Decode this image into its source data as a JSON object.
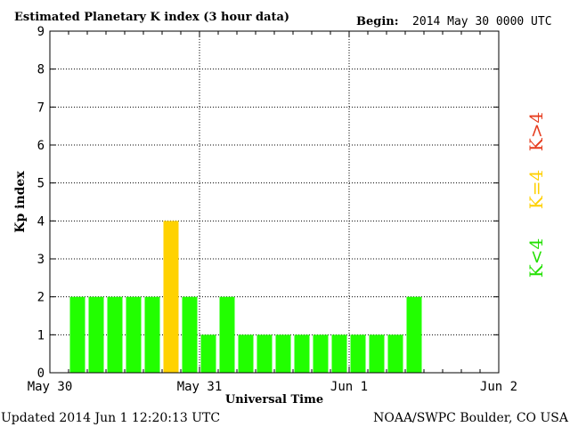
{
  "chart_data": {
    "type": "bar",
    "title": "Estimated Planetary K index (3 hour data)",
    "begin_label": "Begin:",
    "begin_value": "2014 May 30 0000 UTC",
    "xlabel": "Universal Time",
    "ylabel": "Kp index",
    "ylim": [
      0,
      9
    ],
    "yticks": [
      "0",
      "1",
      "2",
      "3",
      "4",
      "5",
      "6",
      "7",
      "8",
      "9"
    ],
    "xticks": [
      "May 30",
      "May 31",
      "Jun 1",
      "Jun 2"
    ],
    "xrange_days": 3,
    "bin_hours": 3,
    "values": [
      2,
      2,
      2,
      2,
      2,
      4,
      2,
      1,
      2,
      1,
      1,
      1,
      1,
      1,
      1,
      1,
      1,
      1,
      2
    ],
    "first_bin_index": 1,
    "grid": true,
    "legend": [
      {
        "label": "K<4",
        "color": "#22e000"
      },
      {
        "label": "K=4",
        "color": "#ffd000"
      },
      {
        "label": "K>4",
        "color": "#e63c1e"
      }
    ],
    "colors": {
      "below4": "#22ff00",
      "eq4": "#ffd200",
      "above4": "#ff2a00"
    }
  },
  "footer": {
    "updated": "Updated 2014 Jun  1 12:20:13 UTC",
    "source": "NOAA/SWPC Boulder, CO USA"
  }
}
